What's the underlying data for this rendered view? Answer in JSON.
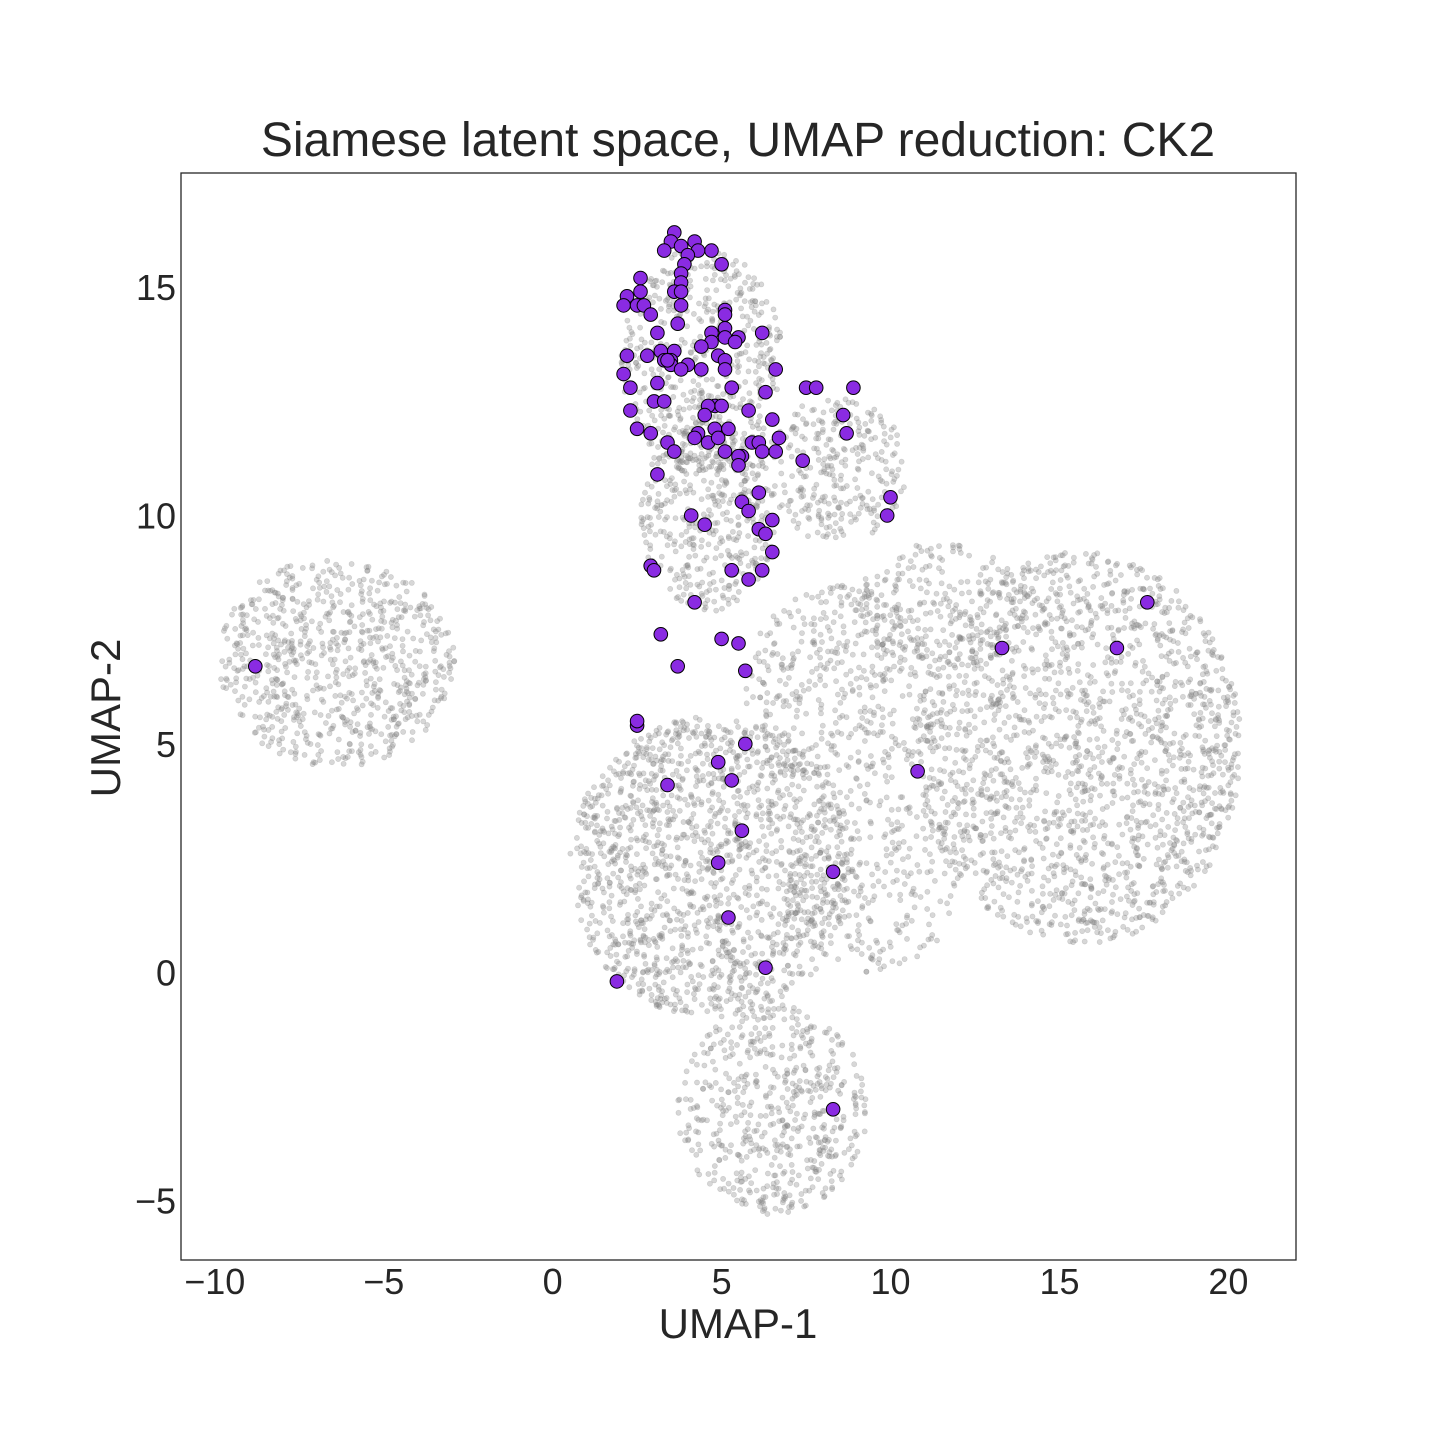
{
  "chart_data": {
    "type": "scatter",
    "title": "Siamese latent space, UMAP reduction: CK2",
    "xlabel": "UMAP-1",
    "ylabel": "UMAP-2",
    "xlim": [
      -11.0,
      22.0
    ],
    "ylim": [
      -6.3,
      17.5
    ],
    "xticks": [
      -10,
      -5,
      0,
      5,
      10,
      15,
      20
    ],
    "yticks": [
      -5,
      0,
      5,
      10,
      15
    ],
    "xtick_labels": [
      "−10",
      "−5",
      "0",
      "5",
      "10",
      "15",
      "20"
    ],
    "ytick_labels": [
      "−5",
      "0",
      "5",
      "10",
      "15"
    ],
    "grid": false,
    "series": [
      {
        "name": "background",
        "color": "#8c8c8c",
        "opacity": 0.35,
        "regions": [
          {
            "shape": "ellipse",
            "cx": -6.4,
            "cy": 6.8,
            "rx": 3.5,
            "ry": 2.3,
            "count": 750
          },
          {
            "shape": "ellipse",
            "cx": 15.6,
            "cy": 4.9,
            "rx": 4.8,
            "ry": 4.3,
            "count": 1800
          },
          {
            "shape": "ellipse",
            "cx": 4.7,
            "cy": 2.3,
            "rx": 4.2,
            "ry": 3.3,
            "count": 1500
          },
          {
            "shape": "ellipse",
            "cx": 6.5,
            "cy": -3.0,
            "rx": 2.8,
            "ry": 2.3,
            "count": 550
          },
          {
            "shape": "ellipse",
            "cx": 8.6,
            "cy": 6.2,
            "rx": 2.9,
            "ry": 2.3,
            "count": 450
          },
          {
            "shape": "ellipse",
            "cx": 8.4,
            "cy": 11.0,
            "rx": 2.1,
            "ry": 1.6,
            "count": 280
          },
          {
            "shape": "ellipse",
            "cx": 4.6,
            "cy": 10.0,
            "rx": 2.0,
            "ry": 2.1,
            "count": 420
          },
          {
            "shape": "ellipse",
            "cx": 4.4,
            "cy": 13.4,
            "rx": 2.4,
            "ry": 2.5,
            "count": 520
          },
          {
            "shape": "ellipse",
            "cx": 11.5,
            "cy": 8.0,
            "rx": 2.6,
            "ry": 1.4,
            "count": 220
          },
          {
            "shape": "ellipse",
            "cx": 9.5,
            "cy": 2.0,
            "rx": 2.5,
            "ry": 2.0,
            "count": 260
          }
        ]
      },
      {
        "name": "CK2",
        "color": "#8a2be2",
        "edgecolor": "#000000",
        "points": [
          [
            3.6,
            16.2
          ],
          [
            3.5,
            16.0
          ],
          [
            3.8,
            15.9
          ],
          [
            4.2,
            16.0
          ],
          [
            4.7,
            15.8
          ],
          [
            3.3,
            15.8
          ],
          [
            4.3,
            15.8
          ],
          [
            4.0,
            15.7
          ],
          [
            3.9,
            15.5
          ],
          [
            5.0,
            15.5
          ],
          [
            3.8,
            15.3
          ],
          [
            2.6,
            15.2
          ],
          [
            3.8,
            15.1
          ],
          [
            2.6,
            14.9
          ],
          [
            3.6,
            14.9
          ],
          [
            3.8,
            14.9
          ],
          [
            2.2,
            14.8
          ],
          [
            2.1,
            14.6
          ],
          [
            3.8,
            14.6
          ],
          [
            2.5,
            14.6
          ],
          [
            2.7,
            14.6
          ],
          [
            2.9,
            14.4
          ],
          [
            5.1,
            14.5
          ],
          [
            5.1,
            14.4
          ],
          [
            3.7,
            14.2
          ],
          [
            3.1,
            14.0
          ],
          [
            5.1,
            14.1
          ],
          [
            4.7,
            14.0
          ],
          [
            6.2,
            14.0
          ],
          [
            5.1,
            13.9
          ],
          [
            4.7,
            13.8
          ],
          [
            5.5,
            13.9
          ],
          [
            5.4,
            13.8
          ],
          [
            4.4,
            13.7
          ],
          [
            3.2,
            13.6
          ],
          [
            3.6,
            13.6
          ],
          [
            2.2,
            13.5
          ],
          [
            2.8,
            13.5
          ],
          [
            3.3,
            13.4
          ],
          [
            3.5,
            13.4
          ],
          [
            4.9,
            13.5
          ],
          [
            5.1,
            13.4
          ],
          [
            3.5,
            13.3
          ],
          [
            4.0,
            13.3
          ],
          [
            4.4,
            13.2
          ],
          [
            5.1,
            13.2
          ],
          [
            3.8,
            13.2
          ],
          [
            6.6,
            13.2
          ],
          [
            2.1,
            13.1
          ],
          [
            3.4,
            13.4
          ],
          [
            5.3,
            12.8
          ],
          [
            2.3,
            12.8
          ],
          [
            3.1,
            12.9
          ],
          [
            7.5,
            12.8
          ],
          [
            7.8,
            12.8
          ],
          [
            8.9,
            12.8
          ],
          [
            6.3,
            12.7
          ],
          [
            3.0,
            12.5
          ],
          [
            3.3,
            12.5
          ],
          [
            4.8,
            12.4
          ],
          [
            5.0,
            12.4
          ],
          [
            4.6,
            12.4
          ],
          [
            4.5,
            12.2
          ],
          [
            2.3,
            12.3
          ],
          [
            5.8,
            12.3
          ],
          [
            8.6,
            12.2
          ],
          [
            6.5,
            12.1
          ],
          [
            4.8,
            11.9
          ],
          [
            5.2,
            11.9
          ],
          [
            2.5,
            11.9
          ],
          [
            2.9,
            11.8
          ],
          [
            8.7,
            11.8
          ],
          [
            4.3,
            11.8
          ],
          [
            4.2,
            11.7
          ],
          [
            6.7,
            11.7
          ],
          [
            3.4,
            11.6
          ],
          [
            4.6,
            11.6
          ],
          [
            5.9,
            11.6
          ],
          [
            6.1,
            11.6
          ],
          [
            4.9,
            11.7
          ],
          [
            3.6,
            11.4
          ],
          [
            5.1,
            11.4
          ],
          [
            5.6,
            11.3
          ],
          [
            6.6,
            11.4
          ],
          [
            6.2,
            11.4
          ],
          [
            5.5,
            11.3
          ],
          [
            7.4,
            11.2
          ],
          [
            5.5,
            11.1
          ],
          [
            3.1,
            10.9
          ],
          [
            6.1,
            10.5
          ],
          [
            10.0,
            10.4
          ],
          [
            5.6,
            10.3
          ],
          [
            5.8,
            10.1
          ],
          [
            9.9,
            10.0
          ],
          [
            4.1,
            10.0
          ],
          [
            6.5,
            9.9
          ],
          [
            4.5,
            9.8
          ],
          [
            6.1,
            9.7
          ],
          [
            6.3,
            9.6
          ],
          [
            6.5,
            9.2
          ],
          [
            2.9,
            8.9
          ],
          [
            3.0,
            8.8
          ],
          [
            5.3,
            8.8
          ],
          [
            6.2,
            8.8
          ],
          [
            5.8,
            8.6
          ],
          [
            4.2,
            8.1
          ],
          [
            3.2,
            7.4
          ],
          [
            5.0,
            7.3
          ],
          [
            5.5,
            7.2
          ],
          [
            3.7,
            6.7
          ],
          [
            5.7,
            6.6
          ],
          [
            2.5,
            5.4
          ],
          [
            2.5,
            5.5
          ],
          [
            5.7,
            5.0
          ],
          [
            4.9,
            4.6
          ],
          [
            10.8,
            4.4
          ],
          [
            3.4,
            4.1
          ],
          [
            5.3,
            4.2
          ],
          [
            5.6,
            3.1
          ],
          [
            4.9,
            2.4
          ],
          [
            8.3,
            2.2
          ],
          [
            5.2,
            1.2
          ],
          [
            6.3,
            0.1
          ],
          [
            1.9,
            -0.2
          ],
          [
            8.3,
            -3.0
          ],
          [
            -8.8,
            6.7
          ],
          [
            13.3,
            7.1
          ],
          [
            16.7,
            7.1
          ],
          [
            17.6,
            8.1
          ]
        ]
      }
    ]
  }
}
